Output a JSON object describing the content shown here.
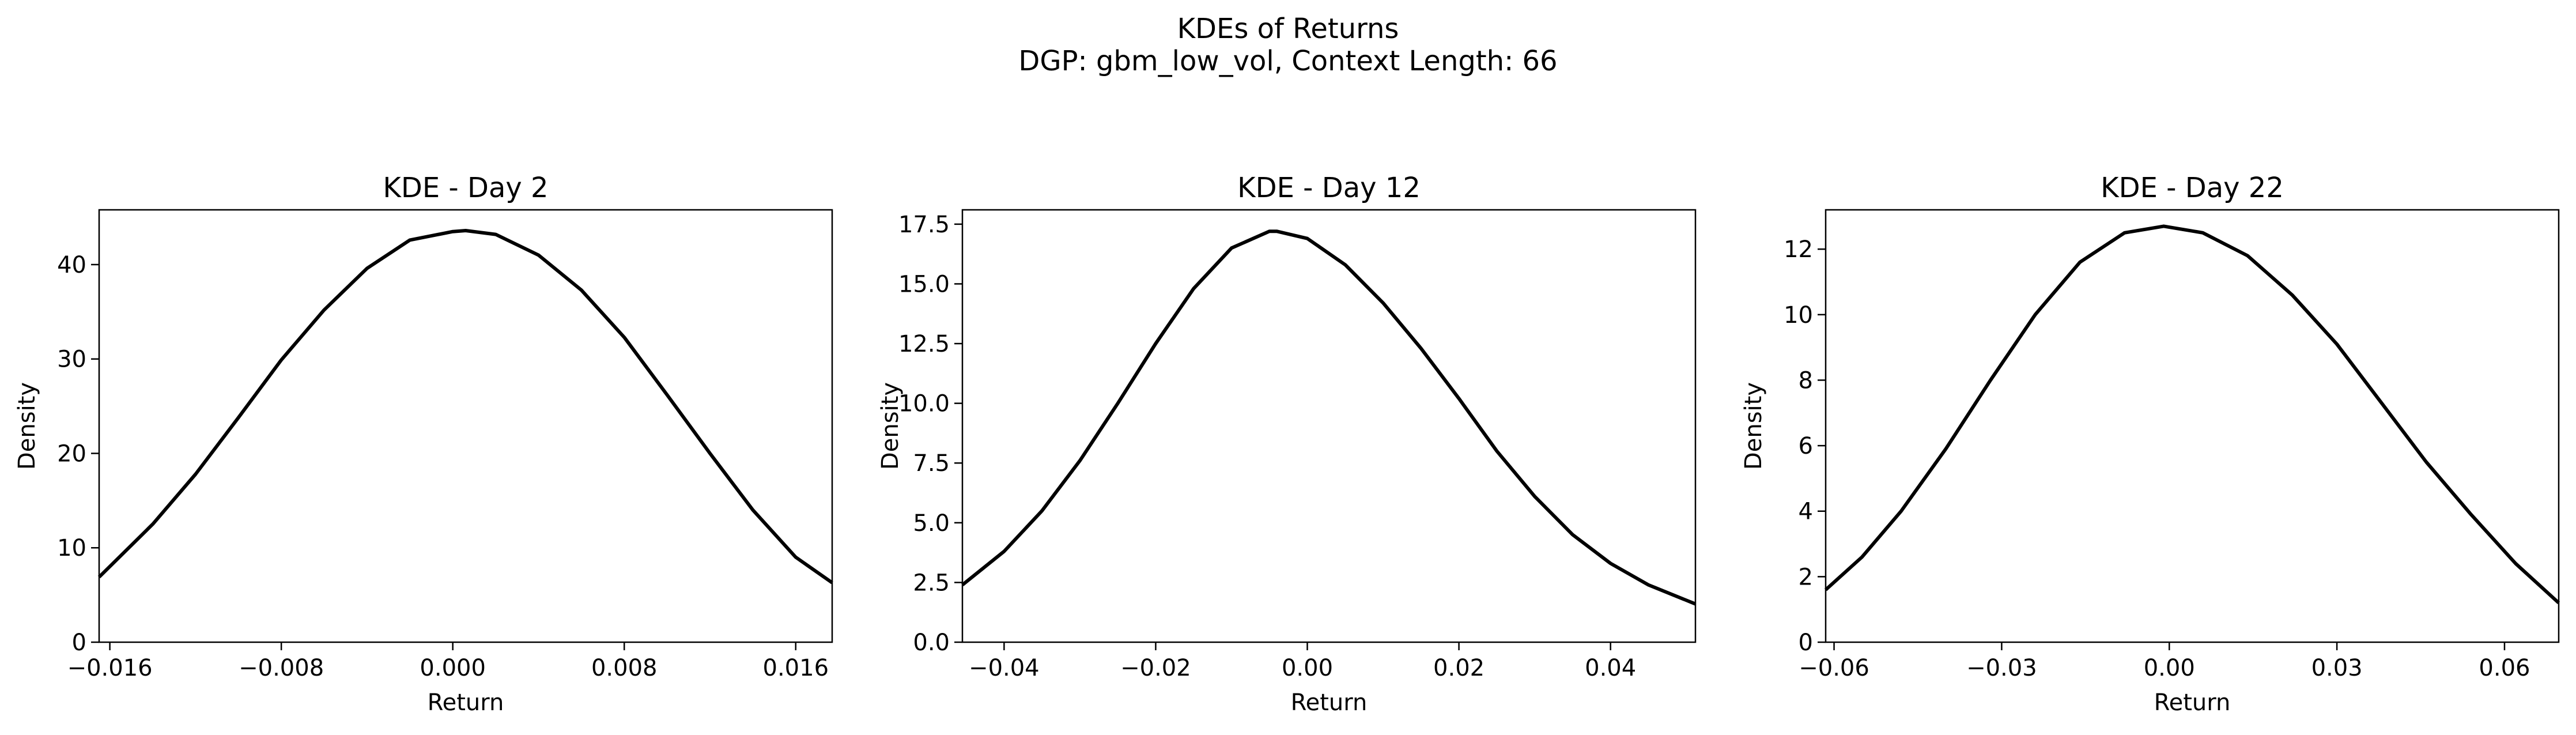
{
  "figure": {
    "title_line1": "KDEs of Returns",
    "title_line2": "DGP: gbm_low_vol, Context Length: 66"
  },
  "chart_data": [
    {
      "type": "line",
      "title": "KDE - Day 2",
      "xlabel": "Return",
      "ylabel": "Density",
      "xlim": [
        -0.0165,
        0.0177
      ],
      "ylim": [
        0,
        45.8
      ],
      "xticks": [
        -0.016,
        -0.008,
        0.0,
        0.008,
        0.016
      ],
      "xtick_labels": [
        "−0.016",
        "−0.008",
        "0.000",
        "0.008",
        "0.016"
      ],
      "yticks": [
        0,
        10,
        20,
        30,
        40
      ],
      "ytick_labels": [
        "0",
        "10",
        "20",
        "30",
        "40"
      ],
      "line_color": "#000000",
      "grid": false,
      "x": [
        -0.0165,
        -0.014,
        -0.012,
        -0.01,
        -0.008,
        -0.006,
        -0.004,
        -0.002,
        0.0,
        0.0006,
        0.002,
        0.004,
        0.006,
        0.008,
        0.01,
        0.012,
        0.014,
        0.016,
        0.0177
      ],
      "y": [
        6.9,
        12.5,
        17.8,
        23.8,
        29.9,
        35.2,
        39.6,
        42.6,
        43.5,
        43.6,
        43.2,
        41.0,
        37.3,
        32.3,
        26.2,
        20.0,
        14.0,
        9.0,
        6.3
      ]
    },
    {
      "type": "line",
      "title": "KDE - Day 12",
      "xlabel": "Return",
      "ylabel": "Density",
      "xlim": [
        -0.0455,
        0.0512
      ],
      "ylim": [
        0,
        18.1
      ],
      "xticks": [
        -0.04,
        -0.02,
        0.0,
        0.02,
        0.04
      ],
      "xtick_labels": [
        "−0.04",
        "−0.02",
        "0.00",
        "0.02",
        "0.04"
      ],
      "yticks": [
        0.0,
        2.5,
        5.0,
        7.5,
        10.0,
        12.5,
        15.0,
        17.5
      ],
      "ytick_labels": [
        "0.0",
        "2.5",
        "5.0",
        "7.5",
        "10.0",
        "12.5",
        "15.0",
        "17.5"
      ],
      "line_color": "#000000",
      "grid": false,
      "x": [
        -0.0455,
        -0.04,
        -0.035,
        -0.03,
        -0.025,
        -0.02,
        -0.015,
        -0.01,
        -0.005,
        -0.004,
        0.0,
        0.005,
        0.01,
        0.015,
        0.02,
        0.025,
        0.03,
        0.035,
        0.04,
        0.045,
        0.0512
      ],
      "y": [
        2.4,
        3.8,
        5.5,
        7.6,
        10.0,
        12.5,
        14.8,
        16.5,
        17.2,
        17.2,
        16.9,
        15.8,
        14.2,
        12.3,
        10.2,
        8.0,
        6.1,
        4.5,
        3.3,
        2.4,
        1.6
      ]
    },
    {
      "type": "line",
      "title": "KDE - Day 22",
      "xlabel": "Return",
      "ylabel": "Density",
      "xlim": [
        -0.0615,
        0.0697
      ],
      "ylim": [
        0,
        13.2
      ],
      "xticks": [
        -0.06,
        -0.03,
        0.0,
        0.03,
        0.06
      ],
      "xtick_labels": [
        "−0.06",
        "−0.03",
        "0.00",
        "0.03",
        "0.06"
      ],
      "yticks": [
        0,
        2,
        4,
        6,
        8,
        10,
        12
      ],
      "ytick_labels": [
        "0",
        "2",
        "4",
        "6",
        "8",
        "10",
        "12"
      ],
      "line_color": "#000000",
      "grid": false,
      "x": [
        -0.0615,
        -0.055,
        -0.048,
        -0.04,
        -0.032,
        -0.024,
        -0.016,
        -0.008,
        -0.001,
        0.006,
        0.014,
        0.022,
        0.03,
        0.038,
        0.046,
        0.054,
        0.062,
        0.0697
      ],
      "y": [
        1.6,
        2.6,
        4.0,
        5.9,
        8.0,
        10.0,
        11.6,
        12.5,
        12.7,
        12.5,
        11.8,
        10.6,
        9.1,
        7.3,
        5.5,
        3.9,
        2.4,
        1.2
      ]
    }
  ]
}
